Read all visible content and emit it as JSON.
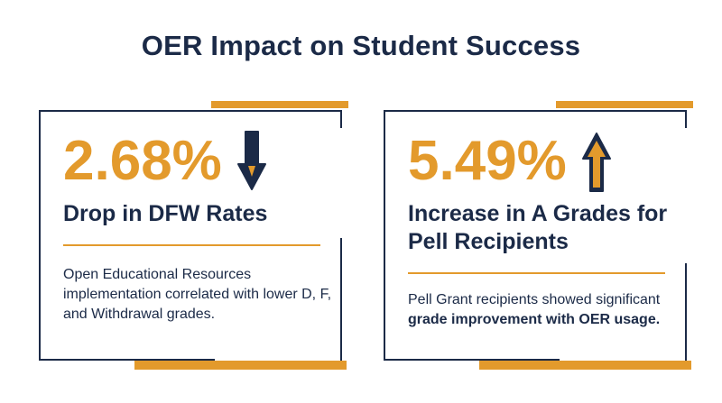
{
  "title": "OER Impact on Student Success",
  "colors": {
    "navy": "#1b2a47",
    "accent": "#e39a2c"
  },
  "cards": [
    {
      "stat": "2.68%",
      "arrow_icon": "arrow-down-icon",
      "heading": "Drop in DFW Rates",
      "description": "Open Educational Resources implementation correlated with lower D, F, and Withdrawal grades."
    },
    {
      "stat": "5.49%",
      "arrow_icon": "arrow-up-icon",
      "heading": "Increase in A Grades for Pell Recipients",
      "description_plain": "Pell Grant recipients showed significant ",
      "description_bold": "grade improvement with OER usage."
    }
  ]
}
